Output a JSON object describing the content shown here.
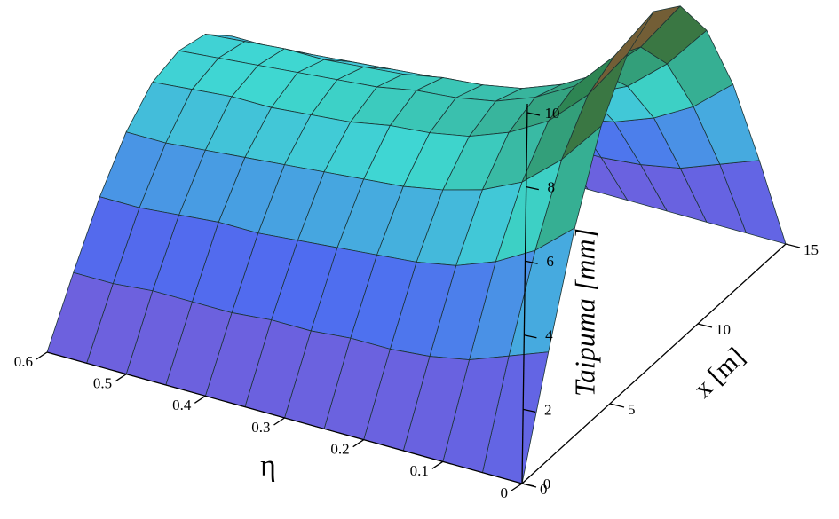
{
  "chart_data": {
    "type": "surface",
    "eta_label": "η",
    "x_label": "x [m]",
    "z_label": "Taipuma [mm]",
    "eta": [
      0,
      0.05,
      0.1,
      0.15,
      0.2,
      0.25,
      0.3,
      0.35,
      0.4,
      0.45,
      0.5,
      0.55,
      0.6
    ],
    "x": [
      0,
      1.5,
      3,
      4.5,
      6,
      7.5,
      9,
      10.5,
      12,
      13.5,
      15
    ],
    "z": [
      [
        0,
        2.9,
        5.6,
        7.7,
        9.0,
        9.5,
        9.0,
        7.7,
        5.6,
        2.9,
        0
      ],
      [
        0,
        2.5,
        4.7,
        6.5,
        7.6,
        8.0,
        7.6,
        6.5,
        4.7,
        2.5,
        0
      ],
      [
        0,
        2.1,
        4.1,
        5.6,
        6.6,
        6.9,
        6.6,
        5.6,
        4.1,
        2.1,
        0
      ],
      [
        0,
        1.9,
        3.7,
        5.1,
        6.0,
        6.3,
        6.0,
        5.1,
        3.7,
        1.9,
        0
      ],
      [
        0,
        1.8,
        3.5,
        4.8,
        5.6,
        5.9,
        5.6,
        4.8,
        3.5,
        1.8,
        0
      ],
      [
        0,
        1.8,
        3.4,
        4.6,
        5.4,
        5.7,
        5.4,
        4.6,
        3.4,
        1.8,
        0
      ],
      [
        0,
        1.7,
        3.3,
        4.5,
        5.3,
        5.6,
        5.3,
        4.5,
        3.3,
        1.7,
        0
      ],
      [
        0,
        1.7,
        3.2,
        4.4,
        5.1,
        5.4,
        5.1,
        4.4,
        3.2,
        1.7,
        0
      ],
      [
        0,
        1.6,
        3.1,
        4.3,
        5.0,
        5.3,
        5.0,
        4.3,
        3.1,
        1.6,
        0
      ],
      [
        0,
        1.6,
        3.1,
        4.2,
        4.9,
        5.2,
        4.9,
        4.2,
        3.1,
        1.6,
        0
      ],
      [
        0,
        1.6,
        3.0,
        4.1,
        4.9,
        5.1,
        4.9,
        4.1,
        3.0,
        1.6,
        0
      ],
      [
        0,
        1.5,
        2.9,
        4.0,
        4.8,
        5.0,
        4.8,
        4.0,
        2.9,
        1.5,
        0
      ],
      [
        0,
        1.5,
        2.9,
        4.0,
        4.7,
        4.9,
        4.7,
        4.0,
        2.9,
        1.5,
        0
      ]
    ],
    "etalim": [
      0,
      0.6
    ],
    "etaticks": [
      0,
      0.1,
      0.2,
      0.3,
      0.4,
      0.5,
      0.6
    ],
    "xlim": [
      0,
      15
    ],
    "xticks": [
      0,
      5,
      10,
      15
    ],
    "zlim": [
      0,
      10
    ],
    "zticks": [
      0,
      2,
      4,
      6,
      8,
      10
    ],
    "colormap": [
      "#7a5cd6",
      "#4f6cf0",
      "#3fd8d2",
      "#2c7d46",
      "#d8321e"
    ],
    "grid_color": "#1c3434"
  }
}
